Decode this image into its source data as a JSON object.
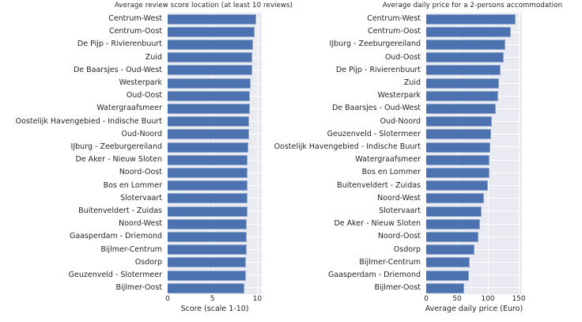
{
  "page": {
    "background": "#ffffff",
    "text_color": "#262626"
  },
  "chart_data": [
    {
      "type": "bar",
      "orientation": "horizontal",
      "title": "Average review score location (at least 10 reviews)",
      "xlabel": "Score (scale 1-10)",
      "ylabel": "",
      "xlim": [
        0,
        10.5
      ],
      "xticks": [
        0,
        5,
        10
      ],
      "grid": true,
      "legend": "none",
      "bar_color": "#4c72b0",
      "plot_bg": "#eaeaf2",
      "gridline_color": "#ffffff",
      "categories": [
        "Centrum-West",
        "Centrum-Oost",
        "De Pijp - Rivierenbuurt",
        "Zuid",
        "De Baarsjes - Oud-West",
        "Westerpark",
        "Oud-Oost",
        "Watergraafsmeer",
        "Oostelijk Havengebied - Indische Buurt",
        "Oud-Noord",
        "IJburg - Zeeburgereiland",
        "De Aker - Nieuw Sloten",
        "Noord-Oost",
        "Bos en Lommer",
        "Slotervaart",
        "Buitenveldert - Zuidas",
        "Noord-West",
        "Gaasperdam - Driemond",
        "Bijlmer-Centrum",
        "Osdorp",
        "Geuzenveld - Slotermeer",
        "Bijlmer-Oost"
      ],
      "values": [
        9.9,
        9.7,
        9.5,
        9.45,
        9.4,
        9.3,
        9.2,
        9.15,
        9.1,
        9.05,
        9.0,
        8.95,
        8.95,
        8.9,
        8.9,
        8.9,
        8.85,
        8.8,
        8.8,
        8.75,
        8.7,
        8.55
      ]
    },
    {
      "type": "bar",
      "orientation": "horizontal",
      "title": "Average daily price for a 2-persons accommodation",
      "xlabel": "Average daily price (Euro)",
      "ylabel": "",
      "xlim": [
        0,
        155
      ],
      "xticks": [
        0,
        50,
        100,
        150
      ],
      "grid": true,
      "legend": "none",
      "bar_color": "#4c72b0",
      "plot_bg": "#eaeaf2",
      "gridline_color": "#ffffff",
      "categories": [
        "Centrum-West",
        "Centrum-Oost",
        "IJburg - Zeeburgereiland",
        "Oud-Oost",
        "De Pijp - Rivierenbuurt",
        "Zuid",
        "Westerpark",
        "De Baarsjes - Oud-West",
        "Oud-Noord",
        "Geuzenveld - Slotermeer",
        "Oostelijk Havengebied - Indische Buurt",
        "Watergraafsmeer",
        "Bos en Lommer",
        "Buitenveldert - Zuidas",
        "Noord-West",
        "Slotervaart",
        "De Aker - Nieuw Sloten",
        "Noord-Oost",
        "Osdorp",
        "Bijlmer-Centrum",
        "Gaasperdam - Driemond",
        "Bijlmer-Oost"
      ],
      "values": [
        145,
        137,
        128,
        126,
        121,
        118,
        117,
        113,
        106,
        105,
        104,
        102,
        102,
        100,
        93,
        90,
        87,
        84,
        78,
        70,
        69,
        62
      ]
    }
  ]
}
